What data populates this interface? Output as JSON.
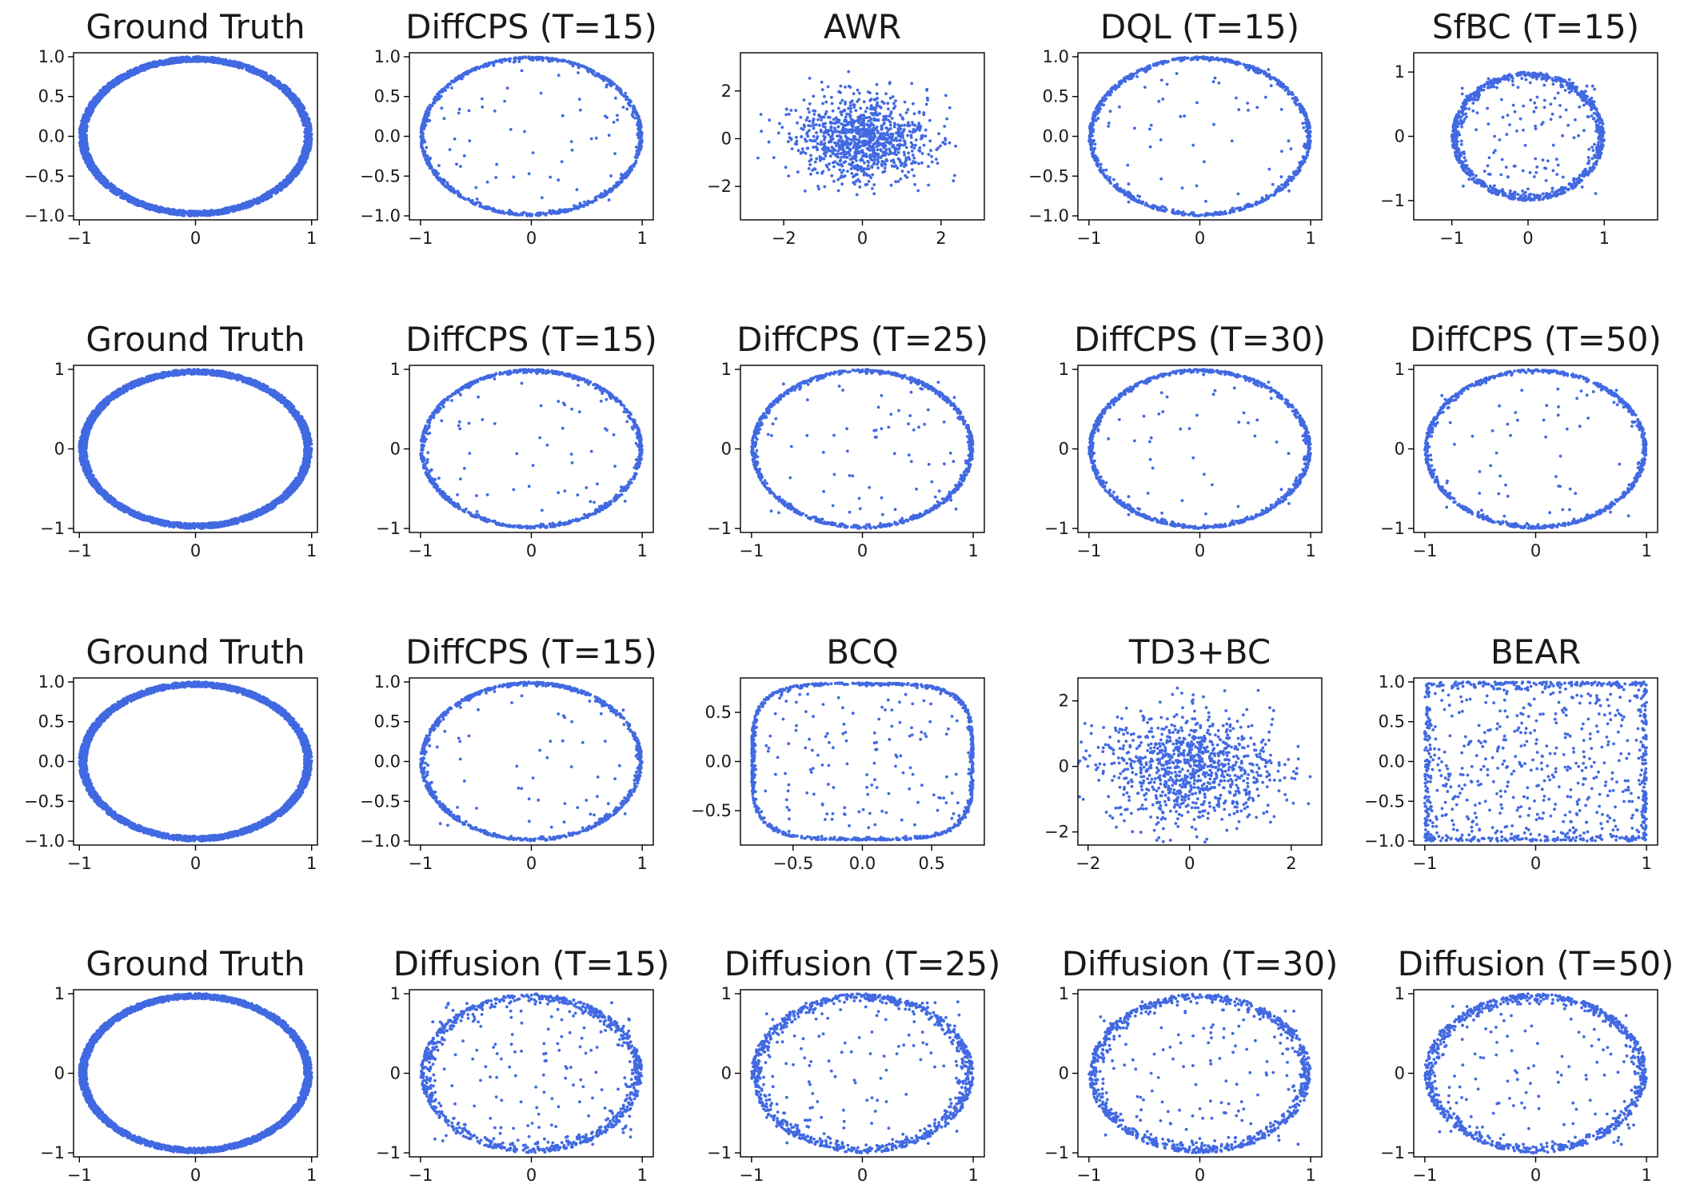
{
  "figure": {
    "marker_color": "#4169e1",
    "background": "#ffffff"
  },
  "chart_data": [
    {
      "type": "scatter",
      "title": "Ground Truth",
      "shape": "ring-dense",
      "points_shown": 3000,
      "xlim": [
        -1.05,
        1.05
      ],
      "ylim": [
        -1.05,
        1.05
      ],
      "xticks": [
        -1,
        0,
        1
      ],
      "xtick_labels": [
        "−1",
        "0",
        "1"
      ],
      "yticks": [
        -1.0,
        -0.5,
        0.0,
        0.5,
        1.0
      ],
      "ytick_labels": [
        "−1.0",
        "−0.5",
        "0.0",
        "0.5",
        "1.0"
      ],
      "grid": false
    },
    {
      "type": "scatter",
      "title": "DiffCPS (T=15)",
      "shape": "ring",
      "points_shown": 1000,
      "xlim": [
        -1.1,
        1.1
      ],
      "ylim": [
        -1.05,
        1.05
      ],
      "xticks": [
        -1,
        0,
        1
      ],
      "xtick_labels": [
        "−1",
        "0",
        "1"
      ],
      "yticks": [
        -1.0,
        -0.5,
        0.0,
        0.5,
        1.0
      ],
      "ytick_labels": [
        "−1.0",
        "−0.5",
        "0.0",
        "0.5",
        "1.0"
      ],
      "grid": false
    },
    {
      "type": "scatter",
      "title": "AWR",
      "shape": "gaussian",
      "points_shown": 1000,
      "xlim": [
        -3.1,
        3.1
      ],
      "ylim": [
        -3.4,
        3.6
      ],
      "xticks": [
        -2,
        0,
        2
      ],
      "xtick_labels": [
        "−2",
        "0",
        "2"
      ],
      "yticks": [
        -2,
        0,
        2
      ],
      "ytick_labels": [
        "−2",
        "0",
        "2"
      ],
      "grid": false
    },
    {
      "type": "scatter",
      "title": "DQL (T=15)",
      "shape": "ring",
      "points_shown": 1000,
      "xlim": [
        -1.1,
        1.1
      ],
      "ylim": [
        -1.05,
        1.05
      ],
      "xticks": [
        -1,
        0,
        1
      ],
      "xtick_labels": [
        "−1",
        "0",
        "1"
      ],
      "yticks": [
        -1.0,
        -0.5,
        0.0,
        0.5,
        1.0
      ],
      "ytick_labels": [
        "−1.0",
        "−0.5",
        "0.0",
        "0.5",
        "1.0"
      ],
      "grid": false
    },
    {
      "type": "scatter",
      "title": "SfBC (T=15)",
      "shape": "ring-noisy",
      "points_shown": 1000,
      "xlim": [
        -1.5,
        1.7
      ],
      "ylim": [
        -1.3,
        1.3
      ],
      "xticks": [
        -1,
        0,
        1
      ],
      "xtick_labels": [
        "−1",
        "0",
        "1"
      ],
      "yticks": [
        -1,
        0,
        1
      ],
      "ytick_labels": [
        "−1",
        "0",
        "1"
      ],
      "grid": false
    },
    {
      "type": "scatter",
      "title": "Ground Truth",
      "shape": "ring-dense",
      "points_shown": 3000,
      "xlim": [
        -1.05,
        1.05
      ],
      "ylim": [
        -1.05,
        1.05
      ],
      "xticks": [
        -1,
        0,
        1
      ],
      "xtick_labels": [
        "−1",
        "0",
        "1"
      ],
      "yticks": [
        -1,
        0,
        1
      ],
      "ytick_labels": [
        "−1",
        "0",
        "1"
      ],
      "grid": false
    },
    {
      "type": "scatter",
      "title": "DiffCPS (T=15)",
      "shape": "ring",
      "points_shown": 1000,
      "xlim": [
        -1.1,
        1.1
      ],
      "ylim": [
        -1.05,
        1.05
      ],
      "xticks": [
        -1,
        0,
        1
      ],
      "xtick_labels": [
        "−1",
        "0",
        "1"
      ],
      "yticks": [
        -1,
        0,
        1
      ],
      "ytick_labels": [
        "−1",
        "0",
        "1"
      ],
      "grid": false
    },
    {
      "type": "scatter",
      "title": "DiffCPS (T=25)",
      "shape": "ring",
      "points_shown": 1000,
      "xlim": [
        -1.1,
        1.1
      ],
      "ylim": [
        -1.05,
        1.05
      ],
      "xticks": [
        -1,
        0,
        1
      ],
      "xtick_labels": [
        "−1",
        "0",
        "1"
      ],
      "yticks": [
        -1,
        0,
        1
      ],
      "ytick_labels": [
        "−1",
        "0",
        "1"
      ],
      "grid": false
    },
    {
      "type": "scatter",
      "title": "DiffCPS (T=30)",
      "shape": "ring",
      "points_shown": 1000,
      "xlim": [
        -1.1,
        1.1
      ],
      "ylim": [
        -1.05,
        1.05
      ],
      "xticks": [
        -1,
        0,
        1
      ],
      "xtick_labels": [
        "−1",
        "0",
        "1"
      ],
      "yticks": [
        -1,
        0,
        1
      ],
      "ytick_labels": [
        "−1",
        "0",
        "1"
      ],
      "grid": false
    },
    {
      "type": "scatter",
      "title": "DiffCPS (T=50)",
      "shape": "ring",
      "points_shown": 1000,
      "xlim": [
        -1.1,
        1.1
      ],
      "ylim": [
        -1.05,
        1.05
      ],
      "xticks": [
        -1,
        0,
        1
      ],
      "xtick_labels": [
        "−1",
        "0",
        "1"
      ],
      "yticks": [
        -1,
        0,
        1
      ],
      "ytick_labels": [
        "−1",
        "0",
        "1"
      ],
      "grid": false
    },
    {
      "type": "scatter",
      "title": "Ground Truth",
      "shape": "ring-dense",
      "points_shown": 3000,
      "xlim": [
        -1.05,
        1.05
      ],
      "ylim": [
        -1.05,
        1.05
      ],
      "xticks": [
        -1,
        0,
        1
      ],
      "xtick_labels": [
        "−1",
        "0",
        "1"
      ],
      "yticks": [
        -1.0,
        -0.5,
        0.0,
        0.5,
        1.0
      ],
      "ytick_labels": [
        "−1.0",
        "−0.5",
        "0.0",
        "0.5",
        "1.0"
      ],
      "grid": false
    },
    {
      "type": "scatter",
      "title": "DiffCPS (T=15)",
      "shape": "ring",
      "points_shown": 1000,
      "xlim": [
        -1.1,
        1.1
      ],
      "ylim": [
        -1.05,
        1.05
      ],
      "xticks": [
        -1,
        0,
        1
      ],
      "xtick_labels": [
        "−1",
        "0",
        "1"
      ],
      "yticks": [
        -1.0,
        -0.5,
        0.0,
        0.5,
        1.0
      ],
      "ytick_labels": [
        "−1.0",
        "−0.5",
        "0.0",
        "0.5",
        "1.0"
      ],
      "grid": false
    },
    {
      "type": "scatter",
      "title": "BCQ",
      "shape": "ring-squared",
      "points_shown": 1000,
      "xlim": [
        -0.88,
        0.88
      ],
      "ylim": [
        -0.85,
        0.85
      ],
      "xticks": [
        -0.5,
        0.0,
        0.5
      ],
      "xtick_labels": [
        "−0.5",
        "0.0",
        "0.5"
      ],
      "yticks": [
        -0.5,
        0.0,
        0.5
      ],
      "ytick_labels": [
        "−0.5",
        "0.0",
        "0.5"
      ],
      "grid": false
    },
    {
      "type": "scatter",
      "title": "TD3+BC",
      "shape": "gaussian",
      "points_shown": 1000,
      "xlim": [
        -2.2,
        2.6
      ],
      "ylim": [
        -2.4,
        2.7
      ],
      "xticks": [
        -2,
        0,
        2
      ],
      "xtick_labels": [
        "−2",
        "0",
        "2"
      ],
      "yticks": [
        -2,
        0,
        2
      ],
      "ytick_labels": [
        "−2",
        "0",
        "2"
      ],
      "grid": false
    },
    {
      "type": "scatter",
      "title": "BEAR",
      "shape": "box",
      "points_shown": 1000,
      "xlim": [
        -1.1,
        1.1
      ],
      "ylim": [
        -1.05,
        1.05
      ],
      "xticks": [
        -1,
        0,
        1
      ],
      "xtick_labels": [
        "−1",
        "0",
        "1"
      ],
      "yticks": [
        -1.0,
        -0.5,
        0.0,
        0.5,
        1.0
      ],
      "ytick_labels": [
        "−1.0",
        "−0.5",
        "0.0",
        "0.5",
        "1.0"
      ],
      "grid": false
    },
    {
      "type": "scatter",
      "title": "Ground Truth",
      "shape": "ring-dense",
      "points_shown": 3000,
      "xlim": [
        -1.05,
        1.05
      ],
      "ylim": [
        -1.05,
        1.05
      ],
      "xticks": [
        -1,
        0,
        1
      ],
      "xtick_labels": [
        "−1",
        "0",
        "1"
      ],
      "yticks": [
        -1,
        0,
        1
      ],
      "ytick_labels": [
        "−1",
        "0",
        "1"
      ],
      "grid": false
    },
    {
      "type": "scatter",
      "title": "Diffusion (T=15)",
      "shape": "ring-noisy",
      "points_shown": 1000,
      "xlim": [
        -1.1,
        1.1
      ],
      "ylim": [
        -1.05,
        1.05
      ],
      "xticks": [
        -1,
        0,
        1
      ],
      "xtick_labels": [
        "−1",
        "0",
        "1"
      ],
      "yticks": [
        -1,
        0,
        1
      ],
      "ytick_labels": [
        "−1",
        "0",
        "1"
      ],
      "grid": false
    },
    {
      "type": "scatter",
      "title": "Diffusion (T=25)",
      "shape": "ring-noisy",
      "points_shown": 1000,
      "xlim": [
        -1.1,
        1.1
      ],
      "ylim": [
        -1.05,
        1.05
      ],
      "xticks": [
        -1,
        0,
        1
      ],
      "xtick_labels": [
        "−1",
        "0",
        "1"
      ],
      "yticks": [
        -1,
        0,
        1
      ],
      "ytick_labels": [
        "−1",
        "0",
        "1"
      ],
      "grid": false
    },
    {
      "type": "scatter",
      "title": "Diffusion (T=30)",
      "shape": "ring-noisy",
      "points_shown": 1000,
      "xlim": [
        -1.1,
        1.1
      ],
      "ylim": [
        -1.05,
        1.05
      ],
      "xticks": [
        -1,
        0,
        1
      ],
      "xtick_labels": [
        "−1",
        "0",
        "1"
      ],
      "yticks": [
        -1,
        0,
        1
      ],
      "ytick_labels": [
        "−1",
        "0",
        "1"
      ],
      "grid": false
    },
    {
      "type": "scatter",
      "title": "Diffusion (T=50)",
      "shape": "ring-noisy",
      "points_shown": 1000,
      "xlim": [
        -1.1,
        1.1
      ],
      "ylim": [
        -1.05,
        1.05
      ],
      "xticks": [
        -1,
        0,
        1
      ],
      "xtick_labels": [
        "−1",
        "0",
        "1"
      ],
      "yticks": [
        -1,
        0,
        1
      ],
      "ytick_labels": [
        "−1",
        "0",
        "1"
      ],
      "grid": false
    }
  ]
}
